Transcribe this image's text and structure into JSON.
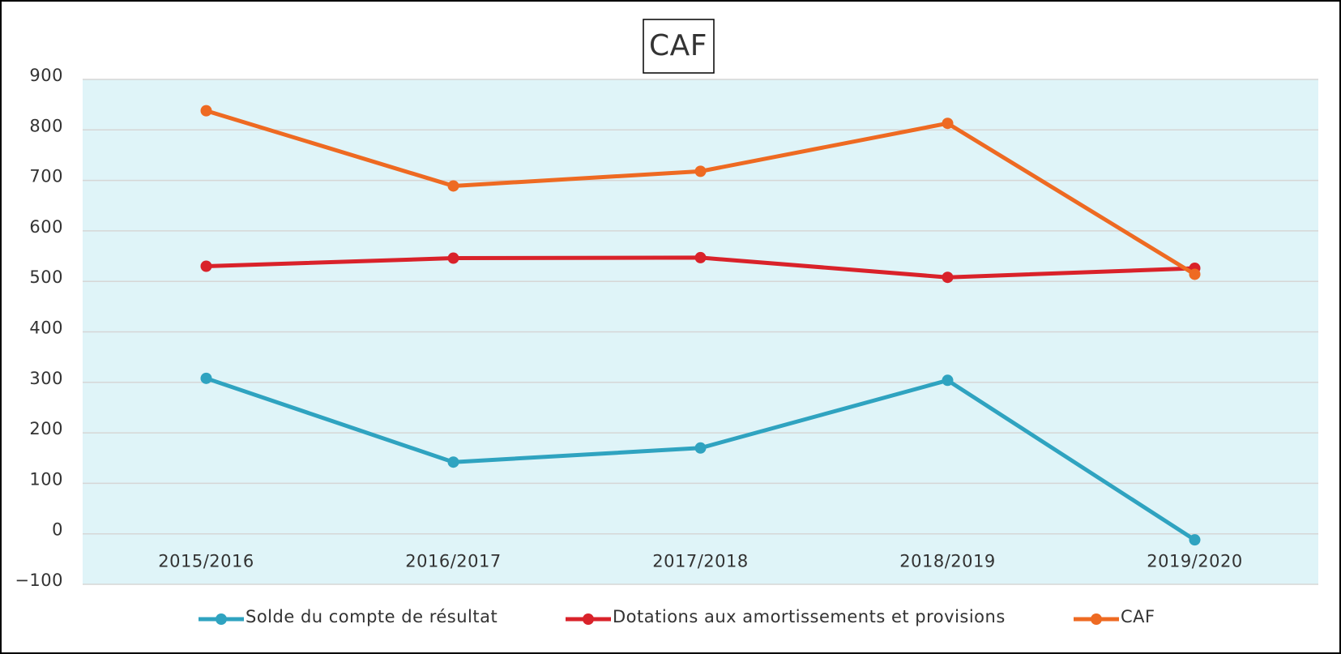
{
  "chart_data": {
    "type": "line",
    "title": "CAF",
    "categories": [
      "2015/2016",
      "2016/2017",
      "2017/2018",
      "2018/2019",
      "2019/2020"
    ],
    "series": [
      {
        "name": "Solde du compte de résultat",
        "color": "#2fa3c0",
        "values": [
          308,
          142,
          170,
          304,
          -12
        ]
      },
      {
        "name": "Dotations aux amortissements et provisions",
        "color": "#d9222a",
        "values": [
          530,
          546,
          547,
          508,
          526
        ]
      },
      {
        "name": "CAF",
        "color": "#ee6a22",
        "values": [
          838,
          689,
          718,
          813,
          514
        ]
      }
    ],
    "ylim": [
      -100,
      900
    ],
    "yticks": [
      {
        "value": -100,
        "label": "−100"
      },
      0,
      100,
      200,
      300,
      400,
      500,
      600,
      700,
      800,
      900
    ],
    "grid": true,
    "legend": "bottom",
    "plot_background": "#dff4f8"
  }
}
